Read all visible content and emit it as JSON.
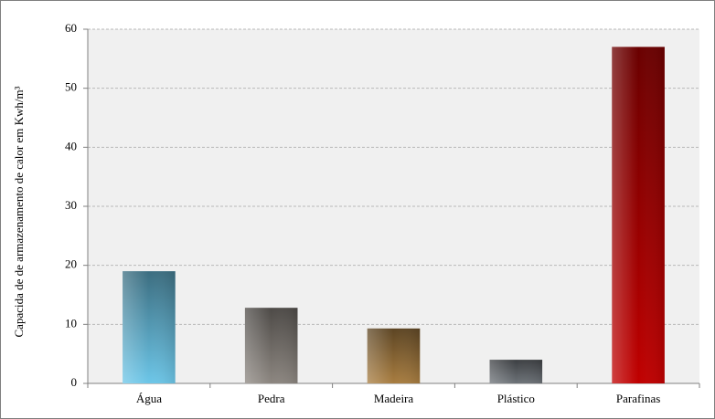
{
  "chart_data": {
    "type": "bar",
    "y_label": "Capacida de de armazenamento de calor em Kwh/m³",
    "categories": [
      "Água",
      "Pedra",
      "Madeira",
      "Plástico",
      "Parafinas"
    ],
    "values": [
      19,
      12.8,
      9.3,
      4,
      57
    ],
    "colors": [
      "#6cc6e8",
      "#8c8680",
      "#a87d40",
      "#6d7278",
      "#c00000"
    ],
    "ylim": [
      0,
      60
    ],
    "yticks": [
      0,
      10,
      20,
      30,
      40,
      50,
      60
    ],
    "grid": true
  }
}
